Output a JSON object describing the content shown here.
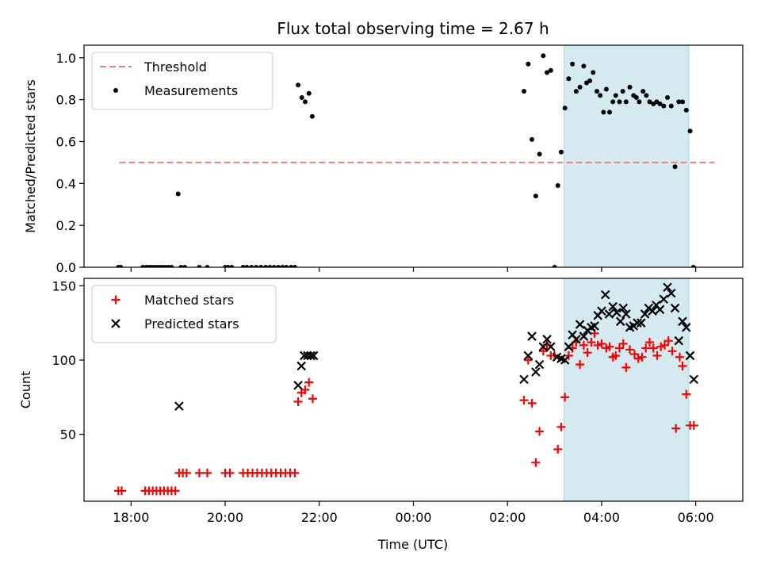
{
  "chart_data": {
    "type": "scatter",
    "title": "Flux total observing time = 2.67 h",
    "xlabel": "Time (UTC)",
    "x_unit": "hours relative to 00:00 UTC",
    "xlim": [
      -7.0,
      7.0
    ],
    "x_ticks": [
      {
        "value": -6,
        "label": "18:00"
      },
      {
        "value": -4,
        "label": "20:00"
      },
      {
        "value": -2,
        "label": "22:00"
      },
      {
        "value": 0,
        "label": "00:00"
      },
      {
        "value": 2,
        "label": "02:00"
      },
      {
        "value": 4,
        "label": "04:00"
      },
      {
        "value": 6,
        "label": "06:00"
      }
    ],
    "shaded_region": {
      "x_start": 3.2,
      "x_end": 5.85,
      "color": "#d4eaf0",
      "edge": "#a9d7e4"
    },
    "panels": [
      {
        "id": "ratio",
        "ylabel": "Matched/Predicted stars",
        "ylim": [
          0,
          1.06
        ],
        "y_ticks": [
          0.0,
          0.2,
          0.4,
          0.6,
          0.8,
          1.0
        ],
        "legend": {
          "location": "upper-left",
          "entries": [
            {
              "name": "Threshold",
              "style": "dashed-line",
              "color": "#f08080"
            },
            {
              "name": "Measurements",
              "style": "dot",
              "color": "#000000"
            }
          ]
        },
        "threshold": {
          "name": "Threshold",
          "y": 0.5,
          "x_range": [
            -6.25,
            6.4
          ],
          "color": "#f08080"
        },
        "series": [
          {
            "name": "Measurements",
            "marker": "dot",
            "color": "#000000",
            "points": [
              [
                -6.27,
                0
              ],
              [
                -6.22,
                0
              ],
              [
                -5.75,
                0
              ],
              [
                -5.68,
                0
              ],
              [
                -5.62,
                0
              ],
              [
                -5.56,
                0
              ],
              [
                -5.5,
                0
              ],
              [
                -5.44,
                0
              ],
              [
                -5.38,
                0
              ],
              [
                -5.32,
                0
              ],
              [
                -5.26,
                0
              ],
              [
                -5.2,
                0
              ],
              [
                -5.14,
                0
              ],
              [
                -5.0,
                0.35
              ],
              [
                -4.94,
                0
              ],
              [
                -4.86,
                0
              ],
              [
                -4.55,
                0
              ],
              [
                -4.38,
                0
              ],
              [
                -4.0,
                0
              ],
              [
                -3.94,
                0
              ],
              [
                -3.86,
                0
              ],
              [
                -3.62,
                0
              ],
              [
                -3.54,
                0
              ],
              [
                -3.44,
                0
              ],
              [
                -3.34,
                0
              ],
              [
                -3.24,
                0
              ],
              [
                -3.14,
                0
              ],
              [
                -3.05,
                0
              ],
              [
                -2.96,
                0
              ],
              [
                -2.87,
                0
              ],
              [
                -2.78,
                0
              ],
              [
                -2.7,
                0
              ],
              [
                -2.6,
                0
              ],
              [
                -2.52,
                0
              ],
              [
                -2.45,
                0.87
              ],
              [
                -2.37,
                0.81
              ],
              [
                -2.3,
                0.79
              ],
              [
                -2.22,
                0.83
              ],
              [
                -2.15,
                0.72
              ],
              [
                2.35,
                0.84
              ],
              [
                2.44,
                0.97
              ],
              [
                2.52,
                0.61
              ],
              [
                2.6,
                0.34
              ],
              [
                2.68,
                0.54
              ],
              [
                2.76,
                1.01
              ],
              [
                2.84,
                0.93
              ],
              [
                2.92,
                0.94
              ],
              [
                3.0,
                0
              ],
              [
                3.07,
                0.39
              ],
              [
                3.14,
                0.55
              ],
              [
                3.22,
                0.76
              ],
              [
                3.3,
                0.9
              ],
              [
                3.38,
                0.97
              ],
              [
                3.46,
                0.84
              ],
              [
                3.54,
                0.86
              ],
              [
                3.62,
                0.96
              ],
              [
                3.68,
                0.88
              ],
              [
                3.75,
                0.89
              ],
              [
                3.82,
                0.93
              ],
              [
                3.9,
                0.84
              ],
              [
                3.97,
                0.82
              ],
              [
                4.04,
                0.74
              ],
              [
                4.1,
                0.85
              ],
              [
                4.17,
                0.74
              ],
              [
                4.24,
                0.79
              ],
              [
                4.3,
                0.82
              ],
              [
                4.38,
                0.79
              ],
              [
                4.45,
                0.84
              ],
              [
                4.52,
                0.79
              ],
              [
                4.6,
                0.86
              ],
              [
                4.68,
                0.82
              ],
              [
                4.74,
                0.81
              ],
              [
                4.8,
                0.79
              ],
              [
                4.88,
                0.84
              ],
              [
                4.95,
                0.82
              ],
              [
                5.02,
                0.79
              ],
              [
                5.1,
                0.78
              ],
              [
                5.17,
                0.79
              ],
              [
                5.24,
                0.78
              ],
              [
                5.32,
                0.77
              ],
              [
                5.4,
                0.81
              ],
              [
                5.48,
                0.77
              ],
              [
                5.56,
                0.48
              ],
              [
                5.64,
                0.79
              ],
              [
                5.72,
                0.79
              ],
              [
                5.8,
                0.75
              ],
              [
                5.88,
                0.65
              ],
              [
                5.95,
                0
              ]
            ]
          }
        ]
      },
      {
        "id": "count",
        "ylabel": "Count",
        "ylim": [
          5,
          155
        ],
        "y_ticks": [
          50,
          100,
          150
        ],
        "legend": {
          "location": "upper-left",
          "entries": [
            {
              "name": "Matched stars",
              "style": "plus",
              "color": "#ff0000"
            },
            {
              "name": "Predicted stars",
              "style": "x",
              "color": "#000000"
            }
          ]
        },
        "series": [
          {
            "name": "Matched stars",
            "marker": "plus",
            "color": "#ff0000",
            "points": [
              [
                -6.27,
                12
              ],
              [
                -6.2,
                12
              ],
              [
                -5.7,
                12
              ],
              [
                -5.62,
                12
              ],
              [
                -5.54,
                12
              ],
              [
                -5.46,
                12
              ],
              [
                -5.38,
                12
              ],
              [
                -5.3,
                12
              ],
              [
                -5.22,
                12
              ],
              [
                -5.14,
                12
              ],
              [
                -5.06,
                12
              ],
              [
                -4.98,
                24
              ],
              [
                -4.9,
                24
              ],
              [
                -4.82,
                24
              ],
              [
                -4.55,
                24
              ],
              [
                -4.38,
                24
              ],
              [
                -4.0,
                24
              ],
              [
                -3.9,
                24
              ],
              [
                -3.62,
                24
              ],
              [
                -3.52,
                24
              ],
              [
                -3.42,
                24
              ],
              [
                -3.32,
                24
              ],
              [
                -3.22,
                24
              ],
              [
                -3.12,
                24
              ],
              [
                -3.02,
                24
              ],
              [
                -2.92,
                24
              ],
              [
                -2.82,
                24
              ],
              [
                -2.72,
                24
              ],
              [
                -2.62,
                24
              ],
              [
                -2.52,
                24
              ],
              [
                -2.45,
                72
              ],
              [
                -2.38,
                78
              ],
              [
                -2.3,
                80
              ],
              [
                -2.22,
                85
              ],
              [
                -2.14,
                74
              ],
              [
                2.35,
                73
              ],
              [
                2.44,
                100
              ],
              [
                2.52,
                71
              ],
              [
                2.6,
                31
              ],
              [
                2.68,
                52
              ],
              [
                2.76,
                106
              ],
              [
                2.84,
                110
              ],
              [
                2.92,
                103
              ],
              [
                3.0,
                103
              ],
              [
                3.07,
                40
              ],
              [
                3.14,
                55
              ],
              [
                3.22,
                75
              ],
              [
                3.3,
                103
              ],
              [
                3.38,
                108
              ],
              [
                3.46,
                112
              ],
              [
                3.54,
                97
              ],
              [
                3.62,
                110
              ],
              [
                3.7,
                105
              ],
              [
                3.78,
                112
              ],
              [
                3.85,
                118
              ],
              [
                3.92,
                110
              ],
              [
                4.0,
                111
              ],
              [
                4.1,
                108
              ],
              [
                4.17,
                109
              ],
              [
                4.24,
                102
              ],
              [
                4.3,
                103
              ],
              [
                4.38,
                108
              ],
              [
                4.46,
                111
              ],
              [
                4.52,
                95
              ],
              [
                4.6,
                107
              ],
              [
                4.7,
                104
              ],
              [
                4.78,
                101
              ],
              [
                4.86,
                102
              ],
              [
                4.94,
                108
              ],
              [
                5.02,
                112
              ],
              [
                5.1,
                108
              ],
              [
                5.18,
                103
              ],
              [
                5.26,
                109
              ],
              [
                5.34,
                110
              ],
              [
                5.42,
                113
              ],
              [
                5.5,
                106
              ],
              [
                5.58,
                54
              ],
              [
                5.66,
                102
              ],
              [
                5.72,
                96
              ],
              [
                5.8,
                77
              ],
              [
                5.88,
                56
              ],
              [
                5.96,
                56
              ]
            ]
          },
          {
            "name": "Predicted stars",
            "marker": "x",
            "color": "#000000",
            "points": [
              [
                -4.98,
                69
              ],
              [
                -2.45,
                83
              ],
              [
                -2.38,
                96
              ],
              [
                -2.32,
                103
              ],
              [
                -2.25,
                103
              ],
              [
                -2.18,
                103
              ],
              [
                -2.12,
                103
              ],
              [
                2.35,
                87
              ],
              [
                2.44,
                103
              ],
              [
                2.52,
                116
              ],
              [
                2.6,
                92
              ],
              [
                2.68,
                97
              ],
              [
                2.76,
                109
              ],
              [
                2.84,
                114
              ],
              [
                2.92,
                109
              ],
              [
                3.05,
                102
              ],
              [
                3.14,
                101
              ],
              [
                3.22,
                100
              ],
              [
                3.3,
                109
              ],
              [
                3.38,
                117
              ],
              [
                3.46,
                114
              ],
              [
                3.54,
                124
              ],
              [
                3.62,
                116
              ],
              [
                3.7,
                120
              ],
              [
                3.78,
                122
              ],
              [
                3.85,
                123
              ],
              [
                3.92,
                130
              ],
              [
                4.0,
                133
              ],
              [
                4.08,
                144
              ],
              [
                4.16,
                131
              ],
              [
                4.24,
                136
              ],
              [
                4.32,
                132
              ],
              [
                4.4,
                126
              ],
              [
                4.46,
                135
              ],
              [
                4.52,
                131
              ],
              [
                4.6,
                122
              ],
              [
                4.68,
                123
              ],
              [
                4.76,
                125
              ],
              [
                4.84,
                125
              ],
              [
                4.92,
                131
              ],
              [
                5.0,
                135
              ],
              [
                5.08,
                133
              ],
              [
                5.16,
                137
              ],
              [
                5.24,
                134
              ],
              [
                5.32,
                141
              ],
              [
                5.4,
                149
              ],
              [
                5.48,
                145
              ],
              [
                5.56,
                135
              ],
              [
                5.64,
                113
              ],
              [
                5.72,
                126
              ],
              [
                5.8,
                122
              ],
              [
                5.88,
                103
              ],
              [
                5.96,
                87
              ]
            ]
          }
        ]
      }
    ]
  }
}
